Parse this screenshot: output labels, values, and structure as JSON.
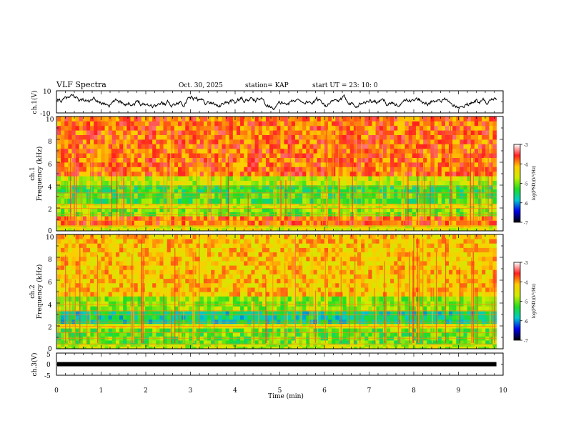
{
  "header": {
    "title": "VLF Spectra",
    "date": "Oct. 30, 2025",
    "station": "station= KAP",
    "start": "start  UT =   23: 10: 0"
  },
  "colorbar": {
    "label": "log(PSD)(V²/Hz)",
    "ticks": [
      "-3",
      "-4",
      "-5",
      "-6",
      "-7"
    ],
    "colors": [
      "#ffffff",
      "#ff2020",
      "#ffcc00",
      "#ccee00",
      "#22dd22",
      "#00cccc",
      "#0000ee",
      "#000000"
    ]
  },
  "chart_data": [
    {
      "type": "line",
      "name": "ch1-waveform",
      "ylabel": "ch.1(V)",
      "ylim": [
        -10,
        10
      ],
      "yticks": [
        "10",
        "-10"
      ],
      "xlim": [
        0,
        10
      ],
      "description_of_trace": "noisy waveform hovering around 0 V with range roughly -8 to +7 V"
    },
    {
      "type": "heatmap",
      "name": "ch1-spectrogram",
      "ylabel": "ch.1\nFrequency (kHz)",
      "ylim": [
        0,
        10
      ],
      "yticks": [
        "10",
        "8",
        "6",
        "4",
        "2",
        "0"
      ],
      "xlim": [
        0,
        9.85
      ],
      "bands": [
        {
          "from": 0.0,
          "to": 0.5,
          "level": -4.5
        },
        {
          "from": 0.5,
          "to": 1.3,
          "level": -3.8
        },
        {
          "from": 1.3,
          "to": 2.0,
          "level": -5.0
        },
        {
          "from": 2.0,
          "to": 2.4,
          "level": -4.6
        },
        {
          "from": 2.4,
          "to": 3.3,
          "level": -5.2
        },
        {
          "from": 3.3,
          "to": 4.0,
          "level": -5.3
        },
        {
          "from": 4.0,
          "to": 4.8,
          "level": -4.7
        },
        {
          "from": 4.8,
          "to": 10.0,
          "level": -3.8
        }
      ]
    },
    {
      "type": "heatmap",
      "name": "ch2-spectrogram",
      "ylabel": "ch.2\nFrequency (kHz)",
      "ylim": [
        0,
        10
      ],
      "yticks": [
        "10",
        "8",
        "6",
        "4",
        "2",
        "0"
      ],
      "xlim": [
        0,
        9.85
      ],
      "bands": [
        {
          "from": 0.0,
          "to": 0.4,
          "level": -4.7
        },
        {
          "from": 0.4,
          "to": 1.8,
          "level": -5.1
        },
        {
          "from": 1.8,
          "to": 2.2,
          "level": -4.5
        },
        {
          "from": 2.2,
          "to": 3.3,
          "level": -5.6
        },
        {
          "from": 3.3,
          "to": 4.6,
          "level": -4.9
        },
        {
          "from": 4.6,
          "to": 10.0,
          "level": -4.2
        }
      ]
    },
    {
      "type": "line",
      "name": "ch3-signal",
      "ylabel": "ch.3(V)",
      "ylim": [
        -5,
        5
      ],
      "yticks": [
        "5",
        "0",
        "-5"
      ],
      "x": [
        0,
        9.85
      ],
      "y": [
        0,
        0
      ]
    }
  ],
  "x_axis": {
    "label": "Time (min)",
    "ticks": [
      "0",
      "1",
      "2",
      "3",
      "4",
      "5",
      "6",
      "7",
      "8",
      "9",
      "10"
    ],
    "range": [
      0,
      10
    ]
  }
}
